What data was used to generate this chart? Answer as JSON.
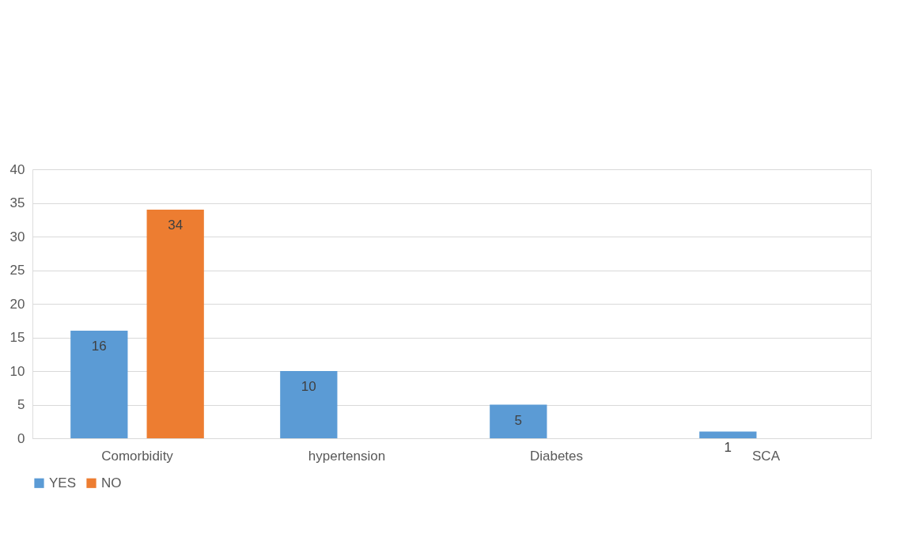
{
  "chart_data": {
    "type": "bar",
    "categories": [
      "Comorbidity",
      "hypertension",
      "Diabetes",
      "SCA"
    ],
    "series": [
      {
        "name": "YES",
        "color": "#5b9bd5",
        "values": [
          16,
          10,
          5,
          1
        ]
      },
      {
        "name": "NO",
        "color": "#ed7d31",
        "values": [
          34,
          null,
          null,
          null
        ]
      }
    ],
    "ylim": [
      0,
      40
    ],
    "yticks": [
      0,
      5,
      10,
      15,
      20,
      25,
      30,
      35,
      40
    ],
    "grid": "y",
    "legend": "bottom",
    "data_labels": true
  }
}
